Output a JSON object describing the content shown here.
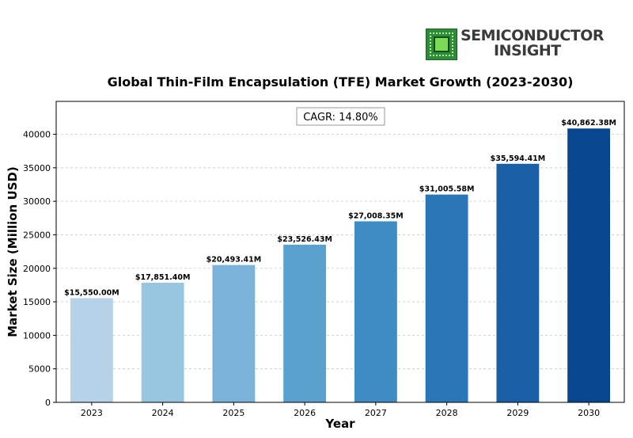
{
  "logo": {
    "line1": "SEMICONDUCTOR",
    "line2": "INSIGHT",
    "icon": "chip-icon"
  },
  "chart_data": {
    "type": "bar",
    "title": "Global Thin-Film Encapsulation (TFE) Market Growth (2023-2030)",
    "xlabel": "Year",
    "ylabel": "Market Size (Million USD)",
    "annotation": "CAGR: 14.80%",
    "categories": [
      "2023",
      "2024",
      "2025",
      "2026",
      "2027",
      "2028",
      "2029",
      "2030"
    ],
    "values": [
      15550.0,
      17851.4,
      20493.41,
      23526.43,
      27008.35,
      31005.58,
      35594.41,
      40862.38
    ],
    "labels": [
      "$15,550.00M",
      "$17,851.40M",
      "$20,493.41M",
      "$23,526.43M",
      "$27,008.35M",
      "$31,005.58M",
      "$35,594.41M",
      "$40,862.38M"
    ],
    "yticks": [
      0,
      5000,
      10000,
      15000,
      20000,
      25000,
      30000,
      35000,
      40000
    ],
    "ylim": [
      0,
      44907
    ],
    "grid": true,
    "colors": [
      "#b5d2e9",
      "#98c5df",
      "#79b4d8",
      "#5aa1ce",
      "#3f8cc4",
      "#2a77b8",
      "#185fa6",
      "#08478f"
    ]
  }
}
